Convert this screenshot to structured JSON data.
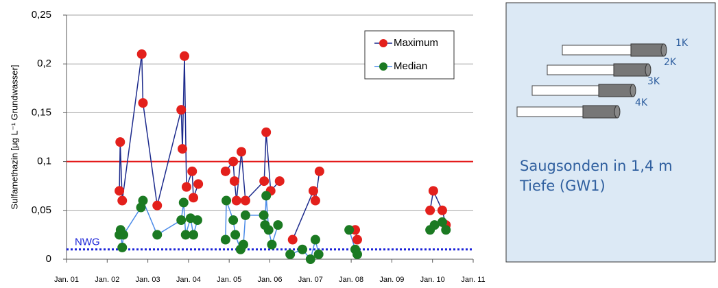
{
  "chart_data": {
    "type": "line",
    "ylabel": "Sulfamethazin [μg L⁻¹ Grundwasser]",
    "xlim": [
      2001,
      2011
    ],
    "xticks": [
      {
        "value": 2001,
        "label": "Jan. 01"
      },
      {
        "value": 2002,
        "label": "Jan. 02"
      },
      {
        "value": 2003,
        "label": "Jan. 03"
      },
      {
        "value": 2004,
        "label": "Jan. 04"
      },
      {
        "value": 2005,
        "label": "Jan. 05"
      },
      {
        "value": 2006,
        "label": "Jan. 06"
      },
      {
        "value": 2007,
        "label": "Jan. 07"
      },
      {
        "value": 2008,
        "label": "Jan. 08"
      },
      {
        "value": 2009,
        "label": "Jan. 09"
      },
      {
        "value": 2010,
        "label": "Jan. 10"
      },
      {
        "value": 2011,
        "label": "Jan. 11"
      }
    ],
    "ylim": [
      0,
      0.25
    ],
    "yticks": [
      0,
      {
        "value": 0.05,
        "label": "0,05"
      },
      {
        "value": 0.1,
        "label": "0,1"
      },
      {
        "value": 0.15,
        "label": "0,15"
      },
      {
        "value": 0.2,
        "label": "0,2"
      },
      {
        "value": 0.25,
        "label": "0,25"
      }
    ],
    "grid": true,
    "legend": "upper right",
    "hlines": [
      {
        "value": 0.1,
        "color": "#e41a1a",
        "style": "solid"
      },
      {
        "value": 0.01,
        "label": "NWG",
        "color": "#1a22d8",
        "style": "dotted"
      }
    ],
    "series": [
      {
        "name": "Maximum",
        "color": "#e3201c",
        "line_color": "#1c2a8c",
        "x": [
          2002.3,
          2002.32,
          2002.37,
          2002.85,
          2002.88,
          2003.23,
          2003.82,
          2003.85,
          2003.9,
          2003.95,
          2004.09,
          2004.12,
          2004.24,
          null,
          2004.91,
          2005.1,
          2005.13,
          2005.18,
          2005.3,
          2005.4,
          2005.86,
          2005.91,
          2006.02,
          2006.24,
          null,
          2006.56,
          2007.07,
          2007.12,
          2007.22,
          null,
          2008.1,
          2008.15,
          null,
          2009.94,
          2010.02,
          2010.24,
          2010.33
        ],
        "values": [
          0.07,
          0.12,
          0.06,
          0.21,
          0.16,
          0.055,
          0.153,
          0.113,
          0.208,
          0.074,
          0.09,
          0.063,
          0.077,
          null,
          0.09,
          0.1,
          0.08,
          0.06,
          0.11,
          0.06,
          0.08,
          0.13,
          0.07,
          0.08,
          null,
          0.02,
          0.07,
          0.06,
          0.09,
          null,
          0.03,
          0.02,
          null,
          0.05,
          0.07,
          0.05,
          0.035
        ]
      },
      {
        "name": "Median",
        "color": "#1b7a22",
        "line_color": "#4a8ae8",
        "x": [
          2002.3,
          2002.33,
          2002.37,
          2002.4,
          2002.83,
          2002.88,
          2003.23,
          2003.82,
          2003.88,
          2003.93,
          2004.05,
          2004.12,
          2004.22,
          null,
          2004.91,
          2004.93,
          2005.1,
          2005.15,
          2005.28,
          2005.35,
          2005.4,
          2005.85,
          2005.88,
          2005.91,
          2005.97,
          2006.05,
          2006.2,
          null,
          2006.5,
          2006.8,
          2007.0,
          2007.12,
          2007.2,
          null,
          2007.95,
          2008.1,
          2008.15,
          null,
          2009.94,
          2010.05,
          2010.24,
          2010.33
        ],
        "values": [
          0.025,
          0.03,
          0.012,
          0.025,
          0.053,
          0.06,
          0.025,
          0.04,
          0.058,
          0.025,
          0.042,
          0.025,
          0.04,
          null,
          0.02,
          0.06,
          0.04,
          0.025,
          0.01,
          0.015,
          0.045,
          0.045,
          0.035,
          0.065,
          0.03,
          0.015,
          0.035,
          null,
          0.005,
          0.01,
          0,
          0.02,
          0.005,
          null,
          0.03,
          0.01,
          0.005,
          null,
          0.03,
          0.035,
          0.038,
          0.03
        ]
      }
    ]
  },
  "panel": {
    "title_lines": [
      "Saugsonden in 1,4 m",
      "Tiefe (GW1)"
    ],
    "probes": [
      "1K",
      "2K",
      "3K",
      "4K"
    ]
  }
}
